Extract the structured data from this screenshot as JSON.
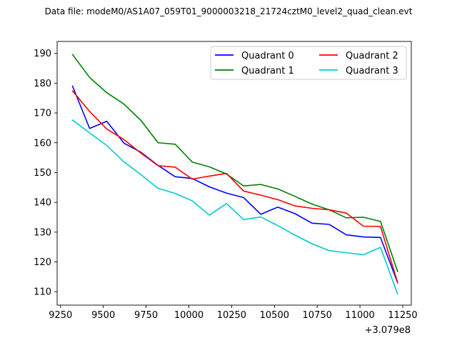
{
  "chart_data": {
    "type": "line",
    "title": "Data file: modeM0/AS1A07_059T01_9000003218_21724cztM0_level2_quad_clean.evt",
    "xlabel": "",
    "ylabel": "",
    "x_offset_label": "+3.079e8",
    "x_ticks": [
      9250,
      9500,
      9750,
      10000,
      10250,
      10500,
      10750,
      11000,
      11250
    ],
    "y_ticks": [
      110,
      120,
      130,
      140,
      150,
      160,
      170,
      180,
      190
    ],
    "xlim": [
      9230,
      11300
    ],
    "ylim": [
      105.5,
      194
    ],
    "grid": false,
    "legend_placement": "top-right",
    "x": [
      9320,
      9420,
      9520,
      9620,
      9720,
      9820,
      9920,
      10020,
      10120,
      10220,
      10320,
      10420,
      10520,
      10620,
      10720,
      10820,
      10920,
      11020,
      11120,
      11220
    ],
    "series": [
      {
        "name": "Quadrant 0",
        "color": "#0000ff",
        "values": [
          179.0,
          164.8,
          167.2,
          159.9,
          156.8,
          152.4,
          148.6,
          148.0,
          145.2,
          143.1,
          141.6,
          136.0,
          138.4,
          136.2,
          133.0,
          132.6,
          129.1,
          128.4,
          128.2,
          113.0
        ]
      },
      {
        "name": "Quadrant 1",
        "color": "#008000",
        "values": [
          189.6,
          181.9,
          176.8,
          173.0,
          167.5,
          160.0,
          159.5,
          153.5,
          151.9,
          149.5,
          145.5,
          146.0,
          144.5,
          142.0,
          139.4,
          137.5,
          134.8,
          135.0,
          133.6,
          116.8
        ]
      },
      {
        "name": "Quadrant 2",
        "color": "#ff0000",
        "values": [
          177.4,
          170.5,
          164.6,
          161.1,
          156.5,
          152.3,
          151.8,
          147.8,
          148.8,
          149.7,
          143.8,
          142.4,
          140.9,
          138.8,
          138.0,
          137.5,
          136.4,
          132.0,
          131.9,
          113.1
        ]
      },
      {
        "name": "Quadrant 3",
        "color": "#00cccc",
        "values": [
          167.6,
          163.3,
          159.1,
          153.6,
          149.3,
          144.7,
          143.0,
          140.5,
          135.7,
          139.6,
          134.2,
          135.1,
          132.2,
          129.0,
          126.1,
          123.8,
          123.1,
          122.4,
          124.9,
          109.2
        ]
      }
    ]
  }
}
